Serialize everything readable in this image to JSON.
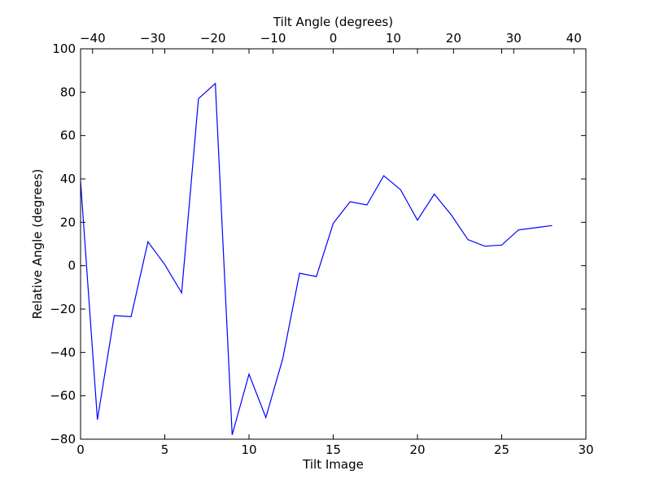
{
  "chart_data": {
    "type": "line",
    "title": "",
    "xlabel": "Tilt Image",
    "ylabel": "Relative Angle (degrees)",
    "top_xlabel": "Tilt Angle (degrees)",
    "xlim": [
      0,
      30
    ],
    "ylim": [
      -80,
      100
    ],
    "top_xlim": [
      -42,
      42
    ],
    "xticks": [
      0,
      5,
      10,
      15,
      20,
      25,
      30
    ],
    "yticks": [
      -80,
      -60,
      -40,
      -20,
      0,
      20,
      40,
      60,
      80,
      100
    ],
    "top_xticks": [
      -40,
      -30,
      -20,
      -10,
      0,
      10,
      20,
      30,
      40
    ],
    "xtick_labels": [
      "0",
      "5",
      "10",
      "15",
      "20",
      "25",
      "30"
    ],
    "ytick_labels": [
      "−80",
      "−60",
      "−40",
      "−20",
      "0",
      "20",
      "40",
      "60",
      "80",
      "100"
    ],
    "top_xtick_labels": [
      "−40",
      "−30",
      "−20",
      "−10",
      "0",
      "10",
      "20",
      "30",
      "40"
    ],
    "grid": false,
    "line_color": "#0000ff",
    "series": [
      {
        "x": [
          0,
          1,
          2,
          3,
          4,
          5,
          6,
          7,
          8,
          9,
          10,
          11,
          12,
          13,
          14,
          15,
          16,
          17,
          18,
          19,
          20,
          21,
          22,
          23,
          24,
          25,
          26,
          27,
          28
        ],
        "values": [
          39,
          -71,
          -23,
          -23.5,
          11,
          0.5,
          -12.5,
          77,
          84,
          -78,
          -50,
          -70,
          -43,
          -3.5,
          -5,
          19.5,
          29.5,
          28,
          41.5,
          35,
          21,
          33,
          23.5,
          12,
          9,
          9.5,
          16.5,
          17.5,
          18.5
        ]
      }
    ]
  }
}
